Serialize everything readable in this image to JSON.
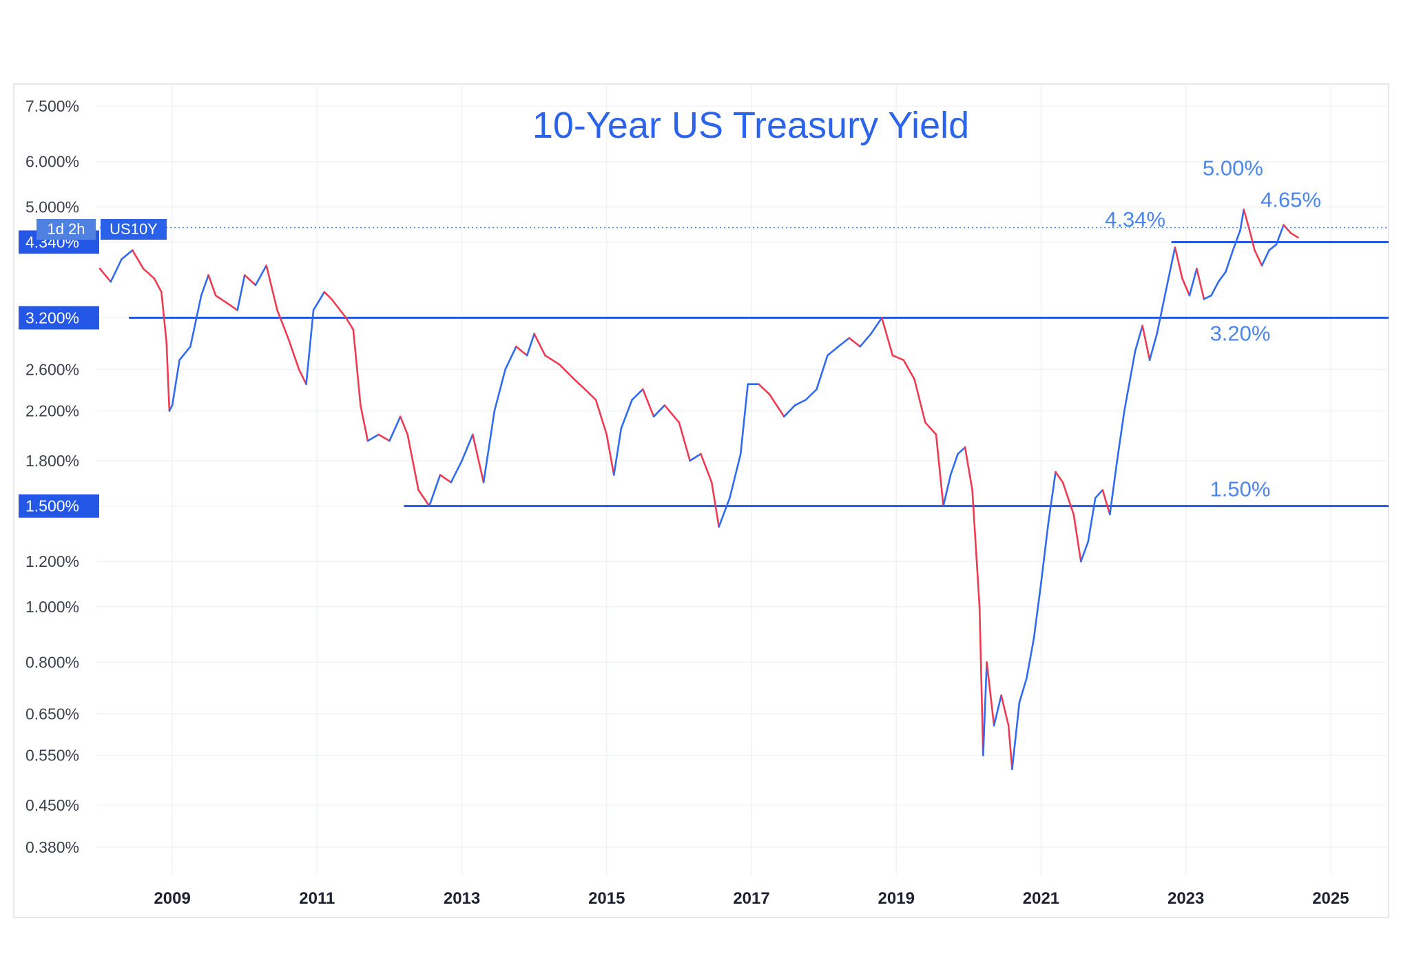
{
  "chart_data": {
    "type": "line",
    "title": "10-Year US Treasury Yield",
    "symbol_label": "US10Y",
    "timeframe_label": "1d 2h",
    "y_scale": "log",
    "ylim": [
      0.34,
      8.2
    ],
    "xlim": [
      2008.0,
      2025.8
    ],
    "grid": true,
    "y_ticks": [
      {
        "value": 7.5,
        "label": "7.500%"
      },
      {
        "value": 6.0,
        "label": "6.000%"
      },
      {
        "value": 5.0,
        "label": "5.000%"
      },
      {
        "value": 2.6,
        "label": "2.600%"
      },
      {
        "value": 2.2,
        "label": "2.200%"
      },
      {
        "value": 1.8,
        "label": "1.800%"
      },
      {
        "value": 1.2,
        "label": "1.200%"
      },
      {
        "value": 1.0,
        "label": "1.000%"
      },
      {
        "value": 0.8,
        "label": "0.800%"
      },
      {
        "value": 0.65,
        "label": "0.650%"
      },
      {
        "value": 0.55,
        "label": "0.550%"
      },
      {
        "value": 0.45,
        "label": "0.450%"
      },
      {
        "value": 0.38,
        "label": "0.380%"
      }
    ],
    "y_badges": [
      {
        "value": 4.34,
        "label": "4.340%"
      },
      {
        "value": 3.2,
        "label": "3.200%"
      },
      {
        "value": 1.5,
        "label": "1.500%"
      }
    ],
    "x_ticks": [
      {
        "value": 2009,
        "label": "2009"
      },
      {
        "value": 2011,
        "label": "2011"
      },
      {
        "value": 2013,
        "label": "2013"
      },
      {
        "value": 2015,
        "label": "2015"
      },
      {
        "value": 2017,
        "label": "2017"
      },
      {
        "value": 2019,
        "label": "2019"
      },
      {
        "value": 2021,
        "label": "2021"
      },
      {
        "value": 2023,
        "label": "2023"
      },
      {
        "value": 2025,
        "label": "2025"
      }
    ],
    "current_value": 4.6,
    "levels": [
      {
        "value": 4.34,
        "x_start": 2022.8,
        "x_end": 2025.8
      },
      {
        "value": 3.2,
        "x_start": 2008.4,
        "x_end": 2025.8
      },
      {
        "value": 1.5,
        "x_start": 2012.2,
        "x_end": 2025.8
      }
    ],
    "annotations": [
      {
        "text": "5.00%",
        "x": 2023.65,
        "y": 5.68
      },
      {
        "text": "4.65%",
        "x": 2024.45,
        "y": 5.0
      },
      {
        "text": "4.34%",
        "x": 2022.3,
        "y": 4.62
      },
      {
        "text": "3.20%",
        "x": 2023.75,
        "y": 2.92
      },
      {
        "text": "1.50%",
        "x": 2023.75,
        "y": 1.56
      }
    ],
    "series": [
      {
        "points": [
          [
            2008.0,
            3.9
          ],
          [
            2008.15,
            3.7
          ],
          [
            2008.3,
            4.05
          ],
          [
            2008.45,
            4.2
          ],
          [
            2008.6,
            3.9
          ],
          [
            2008.75,
            3.75
          ],
          [
            2008.85,
            3.55
          ],
          [
            2008.92,
            2.9
          ],
          [
            2008.96,
            2.2
          ],
          [
            2009.0,
            2.25
          ],
          [
            2009.1,
            2.7
          ],
          [
            2009.25,
            2.85
          ],
          [
            2009.4,
            3.5
          ],
          [
            2009.5,
            3.8
          ],
          [
            2009.6,
            3.5
          ],
          [
            2009.75,
            3.4
          ],
          [
            2009.9,
            3.3
          ],
          [
            2010.0,
            3.8
          ],
          [
            2010.15,
            3.65
          ],
          [
            2010.3,
            3.95
          ],
          [
            2010.45,
            3.3
          ],
          [
            2010.6,
            2.95
          ],
          [
            2010.75,
            2.6
          ],
          [
            2010.85,
            2.45
          ],
          [
            2010.95,
            3.3
          ],
          [
            2011.1,
            3.55
          ],
          [
            2011.2,
            3.45
          ],
          [
            2011.4,
            3.2
          ],
          [
            2011.5,
            3.05
          ],
          [
            2011.6,
            2.25
          ],
          [
            2011.7,
            1.95
          ],
          [
            2011.85,
            2.0
          ],
          [
            2012.0,
            1.95
          ],
          [
            2012.15,
            2.15
          ],
          [
            2012.25,
            2.0
          ],
          [
            2012.4,
            1.6
          ],
          [
            2012.55,
            1.5
          ],
          [
            2012.7,
            1.7
          ],
          [
            2012.85,
            1.65
          ],
          [
            2013.0,
            1.8
          ],
          [
            2013.15,
            2.0
          ],
          [
            2013.3,
            1.65
          ],
          [
            2013.45,
            2.2
          ],
          [
            2013.6,
            2.6
          ],
          [
            2013.75,
            2.85
          ],
          [
            2013.9,
            2.75
          ],
          [
            2014.0,
            3.0
          ],
          [
            2014.15,
            2.75
          ],
          [
            2014.35,
            2.65
          ],
          [
            2014.55,
            2.5
          ],
          [
            2014.7,
            2.4
          ],
          [
            2014.85,
            2.3
          ],
          [
            2015.0,
            2.0
          ],
          [
            2015.1,
            1.7
          ],
          [
            2015.2,
            2.05
          ],
          [
            2015.35,
            2.3
          ],
          [
            2015.5,
            2.4
          ],
          [
            2015.65,
            2.15
          ],
          [
            2015.8,
            2.25
          ],
          [
            2016.0,
            2.1
          ],
          [
            2016.15,
            1.8
          ],
          [
            2016.3,
            1.85
          ],
          [
            2016.45,
            1.65
          ],
          [
            2016.55,
            1.38
          ],
          [
            2016.7,
            1.55
          ],
          [
            2016.85,
            1.85
          ],
          [
            2016.95,
            2.45
          ],
          [
            2017.1,
            2.45
          ],
          [
            2017.25,
            2.35
          ],
          [
            2017.45,
            2.15
          ],
          [
            2017.6,
            2.25
          ],
          [
            2017.75,
            2.3
          ],
          [
            2017.9,
            2.4
          ],
          [
            2018.05,
            2.75
          ],
          [
            2018.2,
            2.85
          ],
          [
            2018.35,
            2.95
          ],
          [
            2018.5,
            2.85
          ],
          [
            2018.65,
            3.0
          ],
          [
            2018.8,
            3.2
          ],
          [
            2018.95,
            2.75
          ],
          [
            2019.1,
            2.7
          ],
          [
            2019.25,
            2.5
          ],
          [
            2019.4,
            2.1
          ],
          [
            2019.55,
            2.0
          ],
          [
            2019.65,
            1.5
          ],
          [
            2019.75,
            1.7
          ],
          [
            2019.85,
            1.85
          ],
          [
            2019.95,
            1.9
          ],
          [
            2020.05,
            1.6
          ],
          [
            2020.15,
            1.0
          ],
          [
            2020.2,
            0.55
          ],
          [
            2020.25,
            0.8
          ],
          [
            2020.35,
            0.62
          ],
          [
            2020.45,
            0.7
          ],
          [
            2020.55,
            0.62
          ],
          [
            2020.6,
            0.52
          ],
          [
            2020.7,
            0.68
          ],
          [
            2020.8,
            0.75
          ],
          [
            2020.9,
            0.88
          ],
          [
            2021.0,
            1.1
          ],
          [
            2021.1,
            1.4
          ],
          [
            2021.2,
            1.72
          ],
          [
            2021.3,
            1.65
          ],
          [
            2021.45,
            1.45
          ],
          [
            2021.55,
            1.2
          ],
          [
            2021.65,
            1.3
          ],
          [
            2021.75,
            1.55
          ],
          [
            2021.85,
            1.6
          ],
          [
            2021.95,
            1.45
          ],
          [
            2022.05,
            1.8
          ],
          [
            2022.15,
            2.2
          ],
          [
            2022.3,
            2.8
          ],
          [
            2022.4,
            3.1
          ],
          [
            2022.5,
            2.7
          ],
          [
            2022.6,
            3.0
          ],
          [
            2022.75,
            3.7
          ],
          [
            2022.85,
            4.25
          ],
          [
            2022.95,
            3.75
          ],
          [
            2023.05,
            3.5
          ],
          [
            2023.15,
            3.9
          ],
          [
            2023.25,
            3.45
          ],
          [
            2023.35,
            3.5
          ],
          [
            2023.45,
            3.7
          ],
          [
            2023.55,
            3.85
          ],
          [
            2023.65,
            4.2
          ],
          [
            2023.75,
            4.55
          ],
          [
            2023.8,
            4.95
          ],
          [
            2023.88,
            4.55
          ],
          [
            2023.95,
            4.2
          ],
          [
            2024.05,
            3.95
          ],
          [
            2024.15,
            4.2
          ],
          [
            2024.25,
            4.3
          ],
          [
            2024.35,
            4.65
          ],
          [
            2024.45,
            4.5
          ],
          [
            2024.55,
            4.42
          ]
        ]
      }
    ]
  }
}
